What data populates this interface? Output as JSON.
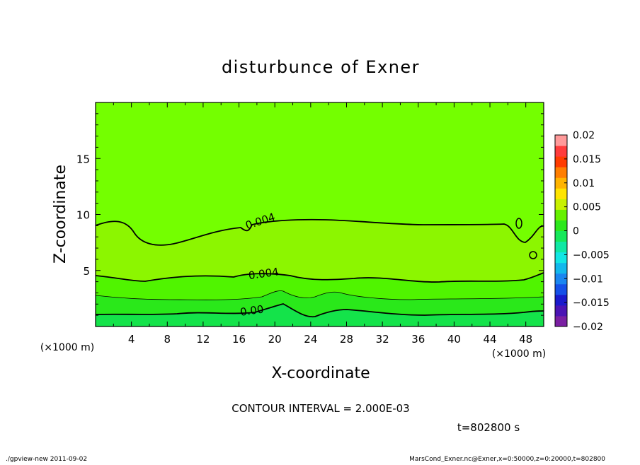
{
  "chart_data": {
    "type": "contour",
    "title": "disturbunce of Exner",
    "xlabel": "X-coordinate",
    "ylabel": "Z-coordinate",
    "x_unit": "(×1000 m)",
    "y_unit": "(×1000 m)",
    "xlim": [
      0,
      50
    ],
    "ylim": [
      0,
      20
    ],
    "x_ticks": [
      4,
      8,
      12,
      16,
      20,
      24,
      28,
      32,
      36,
      40,
      44,
      48
    ],
    "y_ticks": [
      5,
      10,
      15
    ],
    "contour_interval_text": "CONTOUR INTERVAL = 2.000E-03",
    "time_text": "t=802800 s",
    "contour_labels": [
      {
        "text": "0.004",
        "x": 18.5,
        "z": 9.1,
        "angle": -18
      },
      {
        "text": "0.004",
        "x": 18.8,
        "z": 4.4,
        "angle": -8
      },
      {
        "text": "0.00",
        "x": 17.5,
        "z": 1.1,
        "angle": -8
      }
    ],
    "bands": [
      {
        "value_range": [
          0.004,
          0.006
        ],
        "color": "#74ff00"
      },
      {
        "value_range": [
          0.002,
          0.004
        ],
        "color": "#8cf600"
      },
      {
        "value_range": [
          0.0,
          0.002
        ],
        "color": "#50f400"
      },
      {
        "value_range": [
          -0.002,
          0.0
        ],
        "color": "#2ae81a"
      },
      {
        "value_range": [
          -0.004,
          -0.002
        ],
        "color": "#14e34a"
      }
    ],
    "colorbar": {
      "tick_labels": [
        "0.02",
        "0.015",
        "0.01",
        "0.005",
        "0",
        "−0.005",
        "−0.01",
        "−0.015",
        "−0.02"
      ],
      "range": [
        -0.02,
        0.02
      ],
      "colors": [
        "#7a1fa2",
        "#4b14b4",
        "#1a1acc",
        "#1550e8",
        "#1a86f0",
        "#12b8ec",
        "#12e6e4",
        "#10e8a4",
        "#16e85a",
        "#2ce81c",
        "#66f000",
        "#c8f000",
        "#ffe400",
        "#ffb400",
        "#ff7e00",
        "#ff3c00",
        "#ff3c3c",
        "#ff9a9a"
      ]
    }
  },
  "footer": {
    "left": "./gpview-new   2011-09-02",
    "right": "MarsCond_Exner.nc@Exner,x=0:50000,z=0:20000,t=802800"
  }
}
